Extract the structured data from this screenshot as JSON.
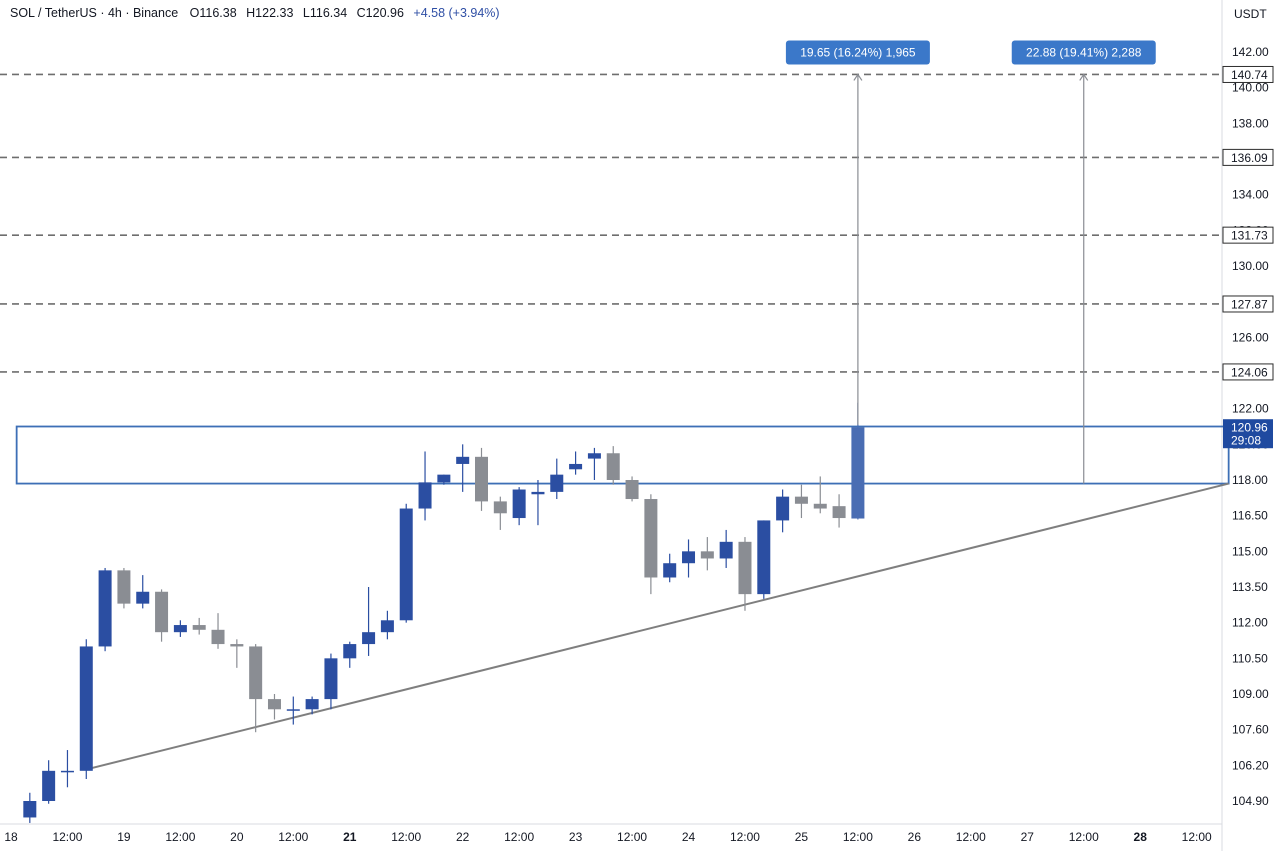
{
  "header": {
    "symbol": "SOL / TetherUS · 4h · Binance",
    "open": "O116.38",
    "high": "H122.33",
    "low": "L116.34",
    "close": "C120.96",
    "change": "+4.58 (+3.94%)"
  },
  "axis_unit": "USDT",
  "colors": {
    "up": "#2b4ea2",
    "down": "#8a8d93",
    "last_up": "#4a6db3",
    "zone": "#3d6fb6",
    "trend": "#7f7f7f",
    "dashed": "#6e6e6e",
    "badge": "#3b78c9"
  },
  "chart_data": {
    "type": "candlestick",
    "x_range": [
      "18 00:00",
      "28 16:00"
    ],
    "ylim": [
      104.3,
      143.5
    ],
    "y_ticks": [
      "142.00",
      "140.00",
      "138.00",
      "136.00",
      "134.00",
      "132.00",
      "130.00",
      "128.00",
      "126.00",
      "124.00",
      "122.00",
      "120.00",
      "118.00",
      "116.50",
      "115.00",
      "113.50",
      "112.00",
      "110.50",
      "109.00",
      "107.60",
      "106.20",
      "104.90"
    ],
    "x_ticks": [
      {
        "label": "18",
        "x": 0,
        "bold": false
      },
      {
        "label": "12:00",
        "x": 3,
        "bold": false
      },
      {
        "label": "19",
        "x": 6,
        "bold": false
      },
      {
        "label": "12:00",
        "x": 9,
        "bold": false
      },
      {
        "label": "20",
        "x": 12,
        "bold": false
      },
      {
        "label": "12:00",
        "x": 15,
        "bold": false
      },
      {
        "label": "21",
        "x": 18,
        "bold": true
      },
      {
        "label": "12:00",
        "x": 21,
        "bold": false
      },
      {
        "label": "22",
        "x": 24,
        "bold": false
      },
      {
        "label": "12:00",
        "x": 27,
        "bold": false
      },
      {
        "label": "23",
        "x": 30,
        "bold": false
      },
      {
        "label": "12:00",
        "x": 33,
        "bold": false
      },
      {
        "label": "24",
        "x": 36,
        "bold": false
      },
      {
        "label": "12:00",
        "x": 39,
        "bold": false
      },
      {
        "label": "25",
        "x": 42,
        "bold": false
      },
      {
        "label": "12:00",
        "x": 45,
        "bold": false
      },
      {
        "label": "26",
        "x": 48,
        "bold": false
      },
      {
        "label": "12:00",
        "x": 51,
        "bold": false
      },
      {
        "label": "27",
        "x": 54,
        "bold": false
      },
      {
        "label": "12:00",
        "x": 57,
        "bold": false
      },
      {
        "label": "28",
        "x": 60,
        "bold": true
      },
      {
        "label": "12:00",
        "x": 63,
        "bold": false
      }
    ],
    "candles": [
      {
        "x": 1,
        "o": 104.3,
        "h": 105.2,
        "l": 104.1,
        "c": 104.9
      },
      {
        "x": 2,
        "o": 104.9,
        "h": 106.4,
        "l": 104.8,
        "c": 106.0
      },
      {
        "x": 3,
        "o": 106.0,
        "h": 106.8,
        "l": 105.4,
        "c": 106.0
      },
      {
        "x": 4,
        "o": 106.0,
        "h": 111.3,
        "l": 105.7,
        "c": 111.0
      },
      {
        "x": 5,
        "o": 111.0,
        "h": 114.3,
        "l": 110.8,
        "c": 114.2
      },
      {
        "x": 6,
        "o": 114.2,
        "h": 114.3,
        "l": 112.6,
        "c": 112.8
      },
      {
        "x": 7,
        "o": 112.8,
        "h": 114.0,
        "l": 112.6,
        "c": 113.3
      },
      {
        "x": 8,
        "o": 113.3,
        "h": 113.4,
        "l": 111.2,
        "c": 111.6
      },
      {
        "x": 9,
        "o": 111.6,
        "h": 112.1,
        "l": 111.4,
        "c": 111.9
      },
      {
        "x": 10,
        "o": 111.9,
        "h": 112.2,
        "l": 111.5,
        "c": 111.7
      },
      {
        "x": 11,
        "o": 111.7,
        "h": 112.4,
        "l": 110.9,
        "c": 111.1
      },
      {
        "x": 12,
        "o": 111.1,
        "h": 111.3,
        "l": 110.1,
        "c": 111.0
      },
      {
        "x": 13,
        "o": 111.0,
        "h": 111.1,
        "l": 107.5,
        "c": 108.8
      },
      {
        "x": 14,
        "o": 108.8,
        "h": 109.0,
        "l": 108.0,
        "c": 108.4
      },
      {
        "x": 15,
        "o": 108.4,
        "h": 108.9,
        "l": 107.8,
        "c": 108.4
      },
      {
        "x": 16,
        "o": 108.4,
        "h": 108.9,
        "l": 108.2,
        "c": 108.8
      },
      {
        "x": 17,
        "o": 108.8,
        "h": 110.7,
        "l": 108.4,
        "c": 110.5
      },
      {
        "x": 18,
        "o": 110.5,
        "h": 111.2,
        "l": 110.1,
        "c": 111.1
      },
      {
        "x": 19,
        "o": 111.1,
        "h": 113.5,
        "l": 110.6,
        "c": 111.6
      },
      {
        "x": 20,
        "o": 111.6,
        "h": 112.5,
        "l": 111.3,
        "c": 112.1
      },
      {
        "x": 21,
        "o": 112.1,
        "h": 117.0,
        "l": 112.0,
        "c": 116.8
      },
      {
        "x": 22,
        "o": 116.8,
        "h": 119.6,
        "l": 116.3,
        "c": 117.9
      },
      {
        "x": 23,
        "o": 117.9,
        "h": 118.3,
        "l": 117.8,
        "c": 118.3
      },
      {
        "x": 24,
        "o": 118.9,
        "h": 120.0,
        "l": 117.5,
        "c": 119.3
      },
      {
        "x": 25,
        "o": 119.3,
        "h": 119.8,
        "l": 116.7,
        "c": 117.1
      },
      {
        "x": 26,
        "o": 117.1,
        "h": 117.3,
        "l": 115.9,
        "c": 116.6
      },
      {
        "x": 27,
        "o": 116.4,
        "h": 117.7,
        "l": 116.1,
        "c": 117.6
      },
      {
        "x": 28,
        "o": 117.4,
        "h": 118.0,
        "l": 116.1,
        "c": 117.5
      },
      {
        "x": 29,
        "o": 117.5,
        "h": 119.2,
        "l": 117.2,
        "c": 118.3
      },
      {
        "x": 30,
        "o": 118.6,
        "h": 119.6,
        "l": 118.3,
        "c": 118.9
      },
      {
        "x": 31,
        "o": 119.2,
        "h": 119.8,
        "l": 118.0,
        "c": 119.5
      },
      {
        "x": 32,
        "o": 119.5,
        "h": 119.9,
        "l": 117.8,
        "c": 118.0
      },
      {
        "x": 33,
        "o": 118.0,
        "h": 118.2,
        "l": 117.1,
        "c": 117.2
      },
      {
        "x": 34,
        "o": 117.2,
        "h": 117.4,
        "l": 113.2,
        "c": 113.9
      },
      {
        "x": 35,
        "o": 113.9,
        "h": 114.9,
        "l": 113.7,
        "c": 114.5
      },
      {
        "x": 36,
        "o": 114.5,
        "h": 115.5,
        "l": 113.9,
        "c": 115.0
      },
      {
        "x": 37,
        "o": 115.0,
        "h": 115.6,
        "l": 114.2,
        "c": 114.7
      },
      {
        "x": 38,
        "o": 114.7,
        "h": 115.9,
        "l": 114.3,
        "c": 115.4
      },
      {
        "x": 39,
        "o": 115.4,
        "h": 115.6,
        "l": 112.5,
        "c": 113.2
      },
      {
        "x": 40,
        "o": 113.2,
        "h": 116.3,
        "l": 113.0,
        "c": 116.3
      },
      {
        "x": 41,
        "o": 116.3,
        "h": 117.6,
        "l": 115.8,
        "c": 117.3
      },
      {
        "x": 42,
        "o": 117.3,
        "h": 117.8,
        "l": 116.4,
        "c": 117.0
      },
      {
        "x": 43,
        "o": 117.0,
        "h": 118.2,
        "l": 116.6,
        "c": 116.8
      },
      {
        "x": 44,
        "o": 116.9,
        "h": 117.4,
        "l": 116.0,
        "c": 116.4
      },
      {
        "x": 45,
        "o": 116.38,
        "h": 122.33,
        "l": 116.34,
        "c": 120.96
      }
    ],
    "dashed_levels": [
      140.74,
      136.09,
      131.73,
      127.87,
      124.06
    ],
    "price_labels": [
      {
        "value": 140.74,
        "label": "140.74"
      },
      {
        "value": 136.09,
        "label": "136.09"
      },
      {
        "value": 131.73,
        "label": "131.73"
      },
      {
        "value": 127.87,
        "label": "127.87"
      },
      {
        "value": 124.06,
        "label": "124.06"
      }
    ],
    "current_price": {
      "value": 120.96,
      "label": "120.96",
      "countdown": "29:08"
    },
    "zone": {
      "x_start": 0.3,
      "x_end": 64.7,
      "top": 121.0,
      "bottom": 117.85
    },
    "trendline": {
      "x1": 4,
      "y1": 106.05,
      "x2": 64.7,
      "y2": 117.85
    },
    "measures": [
      {
        "x": 45,
        "from": 121.1,
        "to": 140.74,
        "label": "19.65 (16.24%) 1,965"
      },
      {
        "x": 57,
        "from": 117.85,
        "to": 140.74,
        "label": "22.88 (19.41%) 2,288"
      }
    ]
  }
}
